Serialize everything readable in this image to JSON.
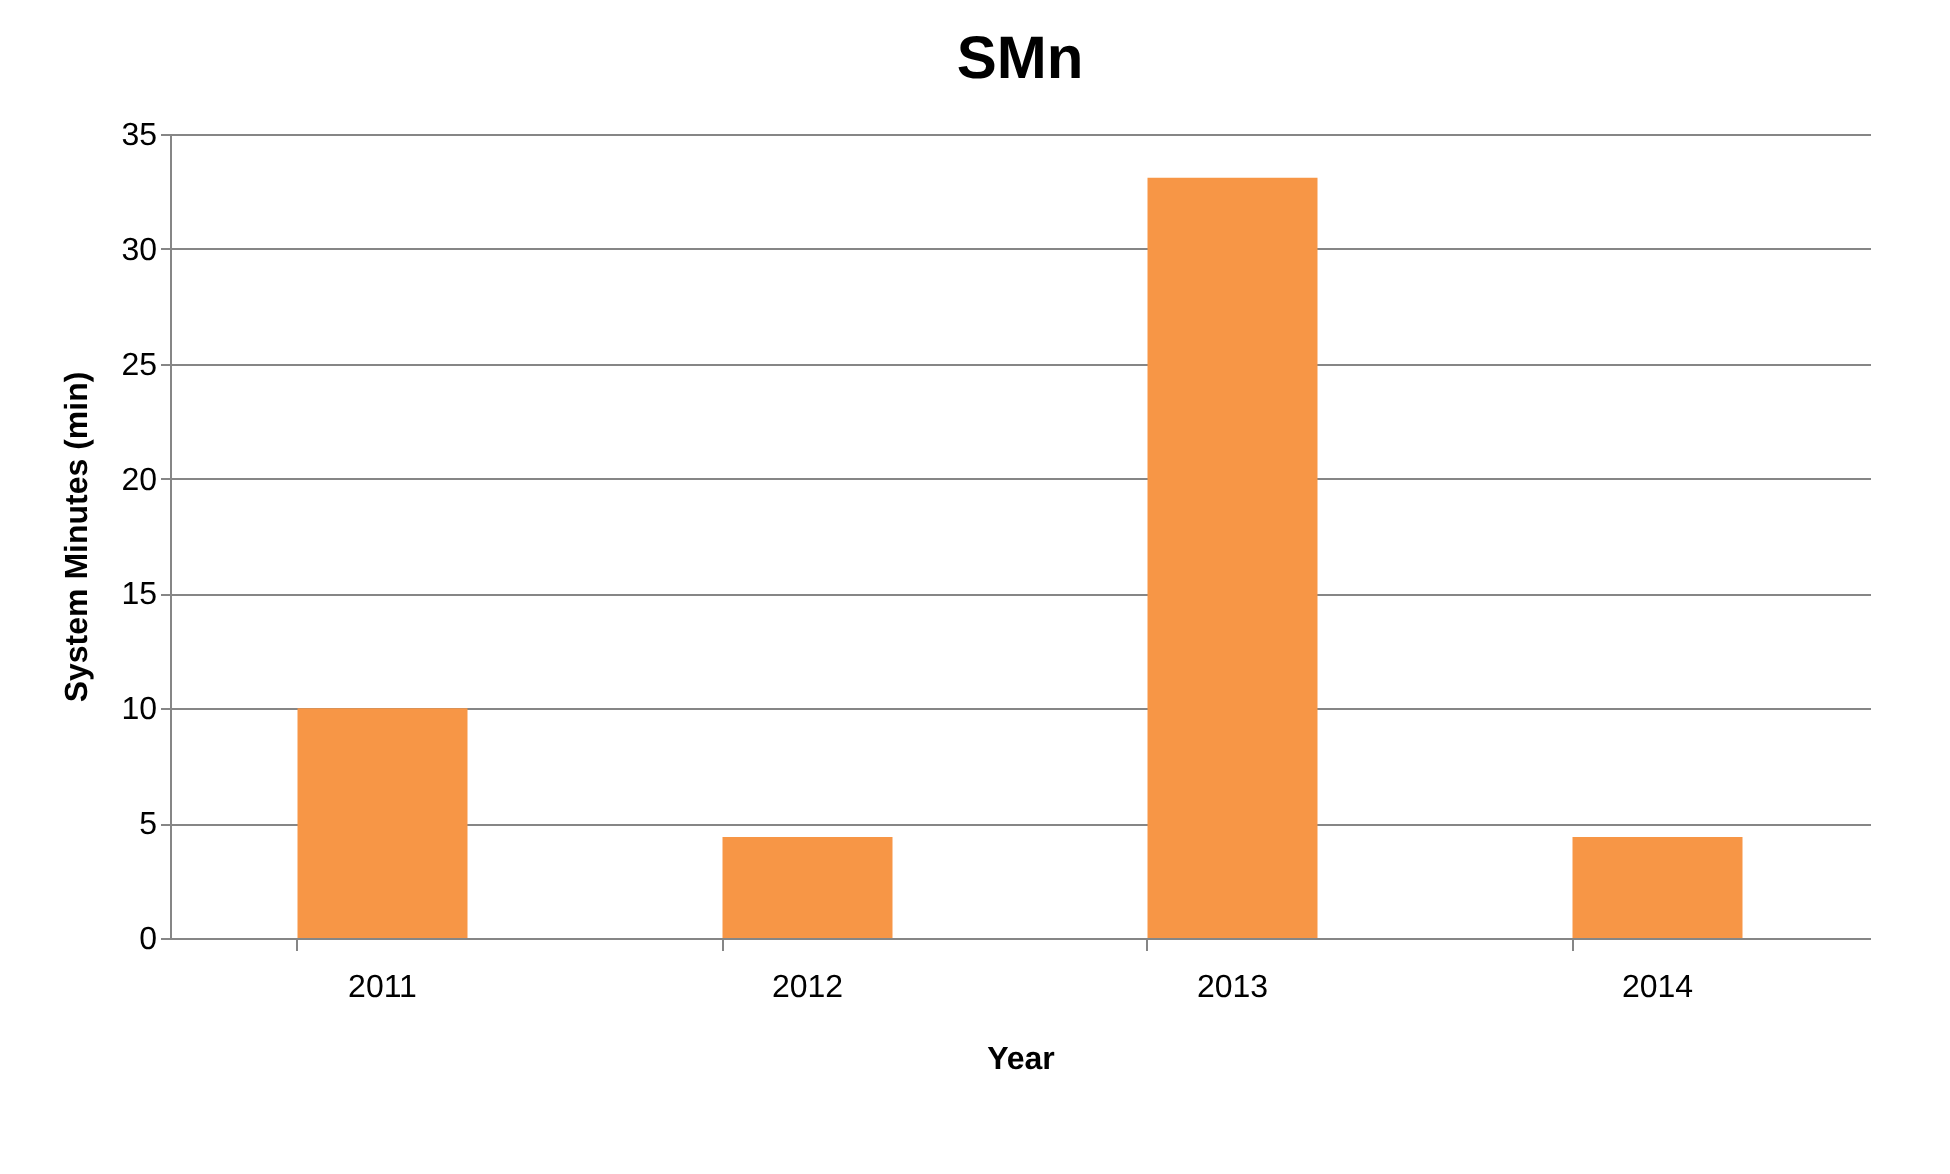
{
  "chart_data": {
    "type": "bar",
    "title": "SMn",
    "xlabel": "Year",
    "ylabel": "System Minutes (min)",
    "categories": [
      "2011",
      "2012",
      "2013",
      "2014"
    ],
    "values": [
      10,
      4.4,
      33.1,
      4.4
    ],
    "color": "#f79646",
    "ylim": [
      0,
      35
    ],
    "yticks": [
      0,
      5,
      10,
      15,
      20,
      25,
      30,
      35
    ],
    "grid": "y"
  }
}
